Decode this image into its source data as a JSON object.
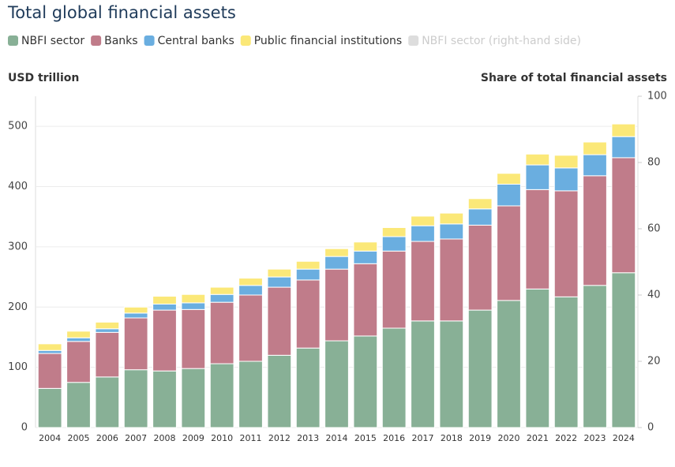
{
  "chart_data": {
    "type": "bar",
    "stacked": true,
    "title": "Total global financial assets",
    "y_label": "USD trillion",
    "y2_label": "Share of total financial assets",
    "categories": [
      "2004",
      "2005",
      "2006",
      "2007",
      "2008",
      "2009",
      "2010",
      "2011",
      "2012",
      "2013",
      "2014",
      "2015",
      "2016",
      "2017",
      "2018",
      "2019",
      "2020",
      "2021",
      "2022",
      "2023",
      "2024"
    ],
    "series": [
      {
        "name": "NBFI sector",
        "color": "#88b096",
        "values": [
          65,
          75,
          84,
          96,
          94,
          98,
          106,
          110,
          120,
          132,
          144,
          152,
          165,
          177,
          177,
          195,
          211,
          230,
          217,
          236,
          257
        ]
      },
      {
        "name": "Banks",
        "color": "#c07c8a",
        "values": [
          58,
          68,
          74,
          86,
          101,
          98,
          102,
          110,
          113,
          113,
          119,
          120,
          128,
          132,
          136,
          141,
          157,
          165,
          176,
          182,
          191
        ]
      },
      {
        "name": "Central banks",
        "color": "#6aaee0",
        "values": [
          5,
          6,
          6,
          8,
          10,
          11,
          13,
          16,
          17,
          18,
          21,
          21,
          24,
          26,
          25,
          27,
          36,
          41,
          38,
          35,
          35
        ]
      },
      {
        "name": "Public financial institutions",
        "color": "#fbe878",
        "values": [
          11,
          11,
          11,
          10,
          13,
          14,
          12,
          12,
          13,
          13,
          13,
          15,
          15,
          16,
          18,
          17,
          18,
          18,
          21,
          21,
          21
        ]
      },
      {
        "name": "NBFI sector (right-hand side)",
        "color": "#cccccc",
        "visible": false,
        "axis": "y2"
      }
    ],
    "ylim": [
      0,
      550
    ],
    "yticks": [
      0,
      100,
      200,
      300,
      400,
      500
    ],
    "y2lim": [
      0,
      100
    ],
    "y2ticks": [
      0,
      20,
      40,
      60,
      80,
      100
    ],
    "grid": true
  }
}
